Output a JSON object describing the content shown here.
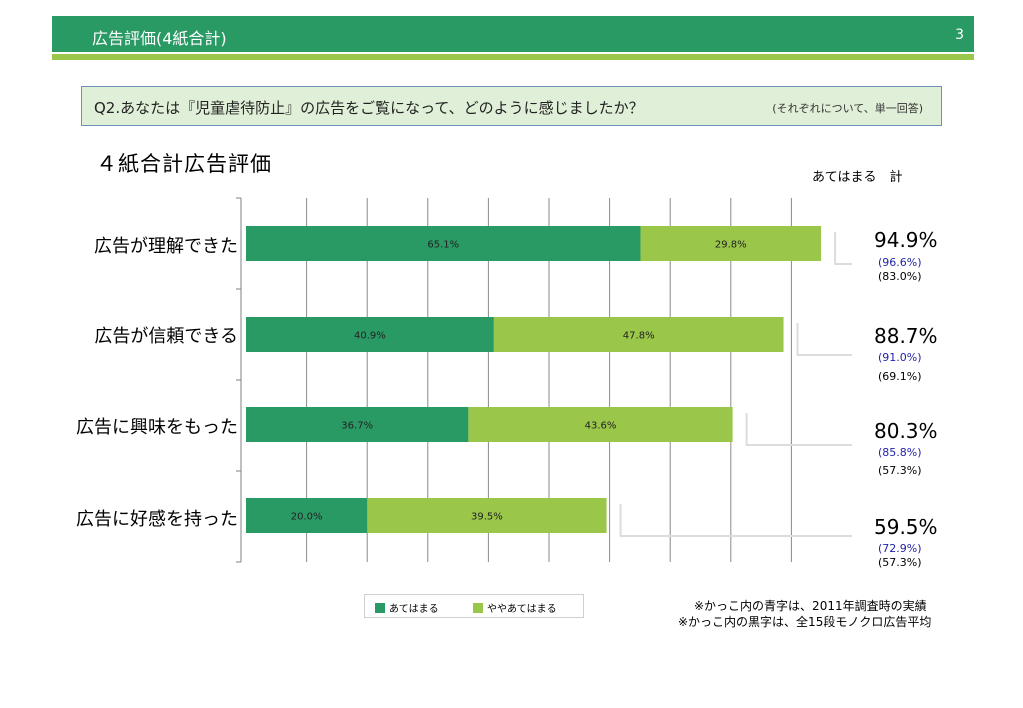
{
  "header": {
    "title": "広告評価(4紙合計)",
    "page_number": "3"
  },
  "question": {
    "text": "Q2.あなたは『児童虐待防止』の広告をご覧になって、どのように感じましたか？",
    "note": "(それぞれについて、単一回答)"
  },
  "colors": {
    "header_green": "#2a9a65",
    "accent_lime": "#9ac64a",
    "dark_series": "#2a9a65",
    "light_series": "#9ac64a"
  },
  "chart_data": {
    "type": "bar",
    "orientation": "horizontal",
    "stacked": true,
    "title": "４紙合計広告評価",
    "categories": [
      "広告が理解できた",
      "広告が信頼できる",
      "広告に興味をもった",
      "広告に好感を持った"
    ],
    "series": [
      {
        "name": "あてはまる",
        "values": [
          65.1,
          40.9,
          36.7,
          20.0
        ],
        "labels": [
          "65.1%",
          "40.9%",
          "36.7%",
          "20.0%"
        ]
      },
      {
        "name": "ややあてはまる",
        "values": [
          29.8,
          47.8,
          43.6,
          39.5
        ],
        "labels": [
          "29.8%",
          "47.8%",
          "43.6%",
          "39.5%"
        ]
      }
    ],
    "totals_header": "あてはまる　計",
    "totals": [
      {
        "value": "94.9%",
        "blue": "(96.6%)",
        "black": "(83.0%)"
      },
      {
        "value": "88.7%",
        "blue": "(91.0%)",
        "black": "(69.1%)"
      },
      {
        "value": "80.3%",
        "blue": "(85.8%)",
        "black": "(57.3%)"
      },
      {
        "value": "59.5%",
        "blue": "(72.9%)",
        "black": "(57.3%)"
      }
    ],
    "xlim": [
      0,
      100
    ],
    "grid": true,
    "legend": "bottom"
  },
  "notes": [
    "※かっこ内の青字は、2011年調査時の実績",
    "※かっこ内の黒字は、全15段モノクロ広告平均"
  ]
}
